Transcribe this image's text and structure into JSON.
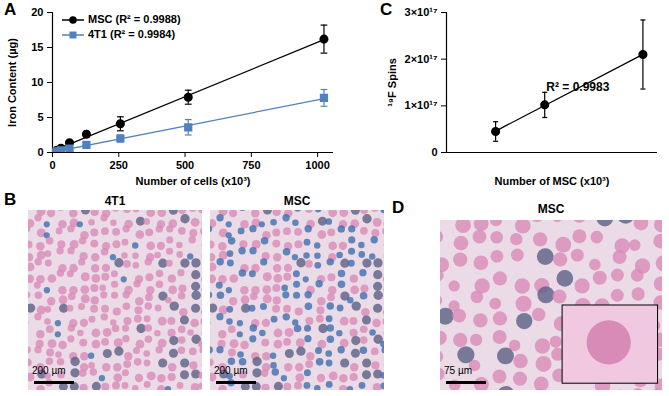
{
  "chart_data": [
    {
      "type": "scatter",
      "panel_label": "A",
      "x_label": "Number of cells (x10³)",
      "y_label": "Iron Content (µg)",
      "x": [
        0,
        16,
        32,
        64,
        128,
        256,
        512,
        1024
      ],
      "series": [
        {
          "name": "MSC (R² = 0.9988)",
          "color": "#000000",
          "marker": "circle",
          "line_style": "solid",
          "values": [
            0.05,
            0.3,
            0.6,
            1.4,
            2.6,
            4.1,
            7.9,
            16.2
          ],
          "error": [
            0.05,
            0.1,
            0.15,
            0.3,
            0.4,
            1.0,
            1.0,
            2.0
          ]
        },
        {
          "name": "4T1 (R² = 0.9984)",
          "color": "#4f81bd",
          "marker": "square",
          "line_style": "solid",
          "values": [
            0.0,
            0.15,
            0.3,
            0.55,
            1.1,
            2.0,
            3.6,
            7.8
          ],
          "error": [
            0.02,
            0.05,
            0.1,
            0.15,
            0.2,
            0.5,
            1.1,
            1.2
          ]
        }
      ],
      "xlim": [
        0,
        1060
      ],
      "xticks": [
        0,
        250,
        500,
        750,
        1000
      ],
      "ylim": [
        0,
        20
      ],
      "yticks": [
        0,
        5,
        10,
        15,
        20
      ],
      "legend": "top-left"
    },
    {
      "type": "scatter",
      "panel_label": "C",
      "x_label": "Number of MSC (x10³)",
      "y_label": "¹⁹F Spins",
      "x": [
        256,
        512,
        1024
      ],
      "series": [
        {
          "name": "MSC",
          "color": "#000000",
          "marker": "circle",
          "line_style": "solid",
          "values": [
            4.5e+16,
            1.02e+17,
            2.1e+17
          ],
          "error": [
            2.1e+16,
            2.7e+16,
            7.4e+16
          ]
        }
      ],
      "xlim": [
        0,
        1100
      ],
      "ylim": [
        0,
        3e+17
      ],
      "yticks": [
        0,
        {
          "value": 1e+17,
          "label": "1×10¹⁷"
        },
        {
          "value": 2e+17,
          "label": "2×10¹⁷"
        },
        {
          "value": 3e+17,
          "label": "3×10¹⁷"
        }
      ],
      "tick_labels": "y",
      "annotations": [
        "R² = 0.9983"
      ]
    }
  ],
  "images": [
    {
      "panel_label": "B",
      "items": [
        {
          "title": "4T1",
          "scale_bar": "200 µm"
        },
        {
          "title": "MSC",
          "scale_bar": "200 µm"
        }
      ]
    },
    {
      "panel_label": "D",
      "items": [
        {
          "title": "MSC",
          "scale_bar": "75 µm"
        }
      ]
    }
  ]
}
